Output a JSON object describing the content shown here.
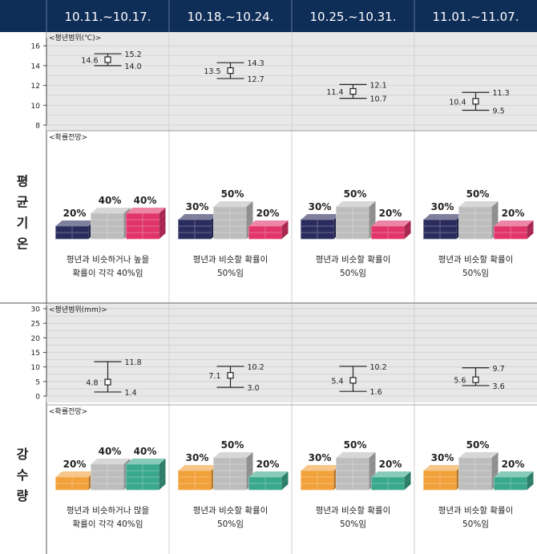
{
  "weeks": [
    "10.11.~10.17.",
    "10.18.~10.24.",
    "10.25.~10.31.",
    "11.01.~11.07."
  ],
  "temperature": {
    "section_label": "평균기온",
    "range_label": "<평년범위(℃)>",
    "outlook_label": "<확률전망>",
    "y_ticks": [
      "16",
      "14",
      "12",
      "10",
      "8"
    ],
    "chart_data": {
      "type": "errorbar",
      "categories": [
        "10.11.~10.17.",
        "10.18.~10.24.",
        "10.25.~10.31.",
        "11.01.~11.07."
      ],
      "ylim": [
        8,
        16.5
      ],
      "mean": [
        14.6,
        13.5,
        11.4,
        10.4
      ],
      "upper": [
        15.2,
        14.3,
        12.1,
        11.3
      ],
      "lower": [
        14.0,
        12.7,
        10.7,
        9.5
      ],
      "mean_labels": [
        "14.6",
        "13.5",
        "11.4",
        "10.4"
      ],
      "upper_labels": [
        "15.2",
        "14.3",
        "12.1",
        "11.3"
      ],
      "lower_labels": [
        "14.0",
        "12.7",
        "10.7",
        "9.5"
      ]
    },
    "probabilities": [
      {
        "below": 20,
        "normal": 40,
        "above": 40,
        "below_label": "20%",
        "normal_label": "40%",
        "above_label": "40%",
        "desc1": "평년과 비슷하거나 높을",
        "desc2": "확률이 각각 40%임"
      },
      {
        "below": 30,
        "normal": 50,
        "above": 20,
        "below_label": "30%",
        "normal_label": "50%",
        "above_label": "20%",
        "desc1": "평년과 비슷할 확률이",
        "desc2": "50%임"
      },
      {
        "below": 30,
        "normal": 50,
        "above": 20,
        "below_label": "30%",
        "normal_label": "50%",
        "above_label": "20%",
        "desc1": "평년과 비슷할 확률이",
        "desc2": "50%임"
      },
      {
        "below": 30,
        "normal": 50,
        "above": 20,
        "below_label": "30%",
        "normal_label": "50%",
        "above_label": "20%",
        "desc1": "평년과 비슷할 확률이",
        "desc2": "50%임"
      }
    ],
    "colors": {
      "below": "#2a2c5e",
      "normal": "#bdbdbd",
      "above": "#e0346a"
    }
  },
  "precipitation": {
    "section_label": "강수량",
    "range_label": "<평년범위(mm)>",
    "outlook_label": "<확률전망>",
    "y_ticks": [
      "30",
      "25",
      "20",
      "15",
      "10",
      "5",
      "0"
    ],
    "chart_data": {
      "type": "errorbar",
      "categories": [
        "10.11.~10.17.",
        "10.18.~10.24.",
        "10.25.~10.31.",
        "11.01.~11.07."
      ],
      "ylim": [
        0,
        30
      ],
      "mean": [
        4.8,
        7.1,
        5.4,
        5.6
      ],
      "upper": [
        11.8,
        10.2,
        10.2,
        9.7
      ],
      "lower": [
        1.4,
        3.0,
        1.6,
        3.6
      ],
      "mean_labels": [
        "4.8",
        "7.1",
        "5.4",
        "5.6"
      ],
      "upper_labels": [
        "11.8",
        "10.2",
        "10.2",
        "9.7"
      ],
      "lower_labels": [
        "1.4",
        "3.0",
        "1.6",
        "3.6"
      ]
    },
    "probabilities": [
      {
        "below": 20,
        "normal": 40,
        "above": 40,
        "below_label": "20%",
        "normal_label": "40%",
        "above_label": "40%",
        "desc1": "평년과 비슷하거나 많을",
        "desc2": "확률이 각각 40%임"
      },
      {
        "below": 30,
        "normal": 50,
        "above": 20,
        "below_label": "30%",
        "normal_label": "50%",
        "above_label": "20%",
        "desc1": "평년과 비슷할 확률이",
        "desc2": "50%임"
      },
      {
        "below": 30,
        "normal": 50,
        "above": 20,
        "below_label": "30%",
        "normal_label": "50%",
        "above_label": "20%",
        "desc1": "평년과 비슷할 확률이",
        "desc2": "50%임"
      },
      {
        "below": 30,
        "normal": 50,
        "above": 20,
        "below_label": "30%",
        "normal_label": "50%",
        "above_label": "20%",
        "desc1": "평년과 비슷할 확률이",
        "desc2": "50%임"
      }
    ],
    "colors": {
      "below": "#f2a13a",
      "normal": "#bdbdbd",
      "above": "#3aa88c"
    }
  },
  "header_color": "#0e2d57"
}
